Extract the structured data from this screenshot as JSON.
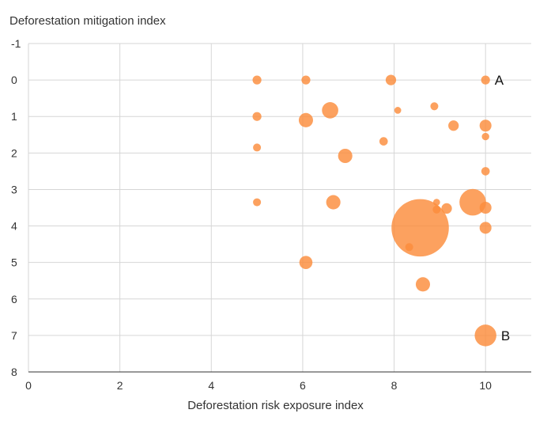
{
  "chart_data": {
    "type": "scatter",
    "variant": "bubble",
    "xlabel": "Deforestation risk exposure index",
    "ylabel": "Deforestation mitigation index",
    "xlim": [
      0,
      11
    ],
    "ylim": [
      -1,
      8
    ],
    "y_inverted": true,
    "xticks": [
      "0",
      "2",
      "4",
      "6",
      "8",
      "10"
    ],
    "yticks": [
      "-1",
      "0",
      "1",
      "2",
      "3",
      "4",
      "5",
      "6",
      "7",
      "8"
    ],
    "grid": true,
    "legend": "none",
    "color": "#fb8c3c",
    "points": [
      {
        "x": 5.0,
        "y": 0.0,
        "size": 1
      },
      {
        "x": 6.07,
        "y": 0.0,
        "size": 1
      },
      {
        "x": 7.93,
        "y": 0.0,
        "size": 1.4
      },
      {
        "x": 10.0,
        "y": 0.0,
        "size": 1,
        "label": "A"
      },
      {
        "x": 5.0,
        "y": 1.0,
        "size": 1
      },
      {
        "x": 6.07,
        "y": 1.1,
        "size": 2.6
      },
      {
        "x": 6.6,
        "y": 0.83,
        "size": 3.4
      },
      {
        "x": 8.08,
        "y": 0.83,
        "size": 0.6
      },
      {
        "x": 8.88,
        "y": 0.72,
        "size": 0.8
      },
      {
        "x": 9.3,
        "y": 1.25,
        "size": 1.4
      },
      {
        "x": 10.0,
        "y": 1.25,
        "size": 1.8
      },
      {
        "x": 10.0,
        "y": 1.55,
        "size": 0.7
      },
      {
        "x": 5.0,
        "y": 1.85,
        "size": 0.8
      },
      {
        "x": 7.77,
        "y": 1.68,
        "size": 0.9
      },
      {
        "x": 6.93,
        "y": 2.08,
        "size": 2.6
      },
      {
        "x": 10.0,
        "y": 2.5,
        "size": 0.9
      },
      {
        "x": 5.0,
        "y": 3.35,
        "size": 0.8
      },
      {
        "x": 6.67,
        "y": 3.35,
        "size": 2.6
      },
      {
        "x": 8.93,
        "y": 3.35,
        "size": 0.6
      },
      {
        "x": 8.93,
        "y": 3.55,
        "size": 0.8
      },
      {
        "x": 9.15,
        "y": 3.52,
        "size": 1.4
      },
      {
        "x": 9.72,
        "y": 3.35,
        "size": 9.0
      },
      {
        "x": 10.0,
        "y": 3.5,
        "size": 1.8
      },
      {
        "x": 8.57,
        "y": 4.05,
        "size": 42.0
      },
      {
        "x": 10.0,
        "y": 4.05,
        "size": 1.8
      },
      {
        "x": 8.33,
        "y": 4.58,
        "size": 0.8
      },
      {
        "x": 6.07,
        "y": 5.0,
        "size": 2.2
      },
      {
        "x": 8.63,
        "y": 5.6,
        "size": 2.6
      },
      {
        "x": 10.0,
        "y": 7.0,
        "size": 6.0,
        "label": "B"
      }
    ]
  }
}
